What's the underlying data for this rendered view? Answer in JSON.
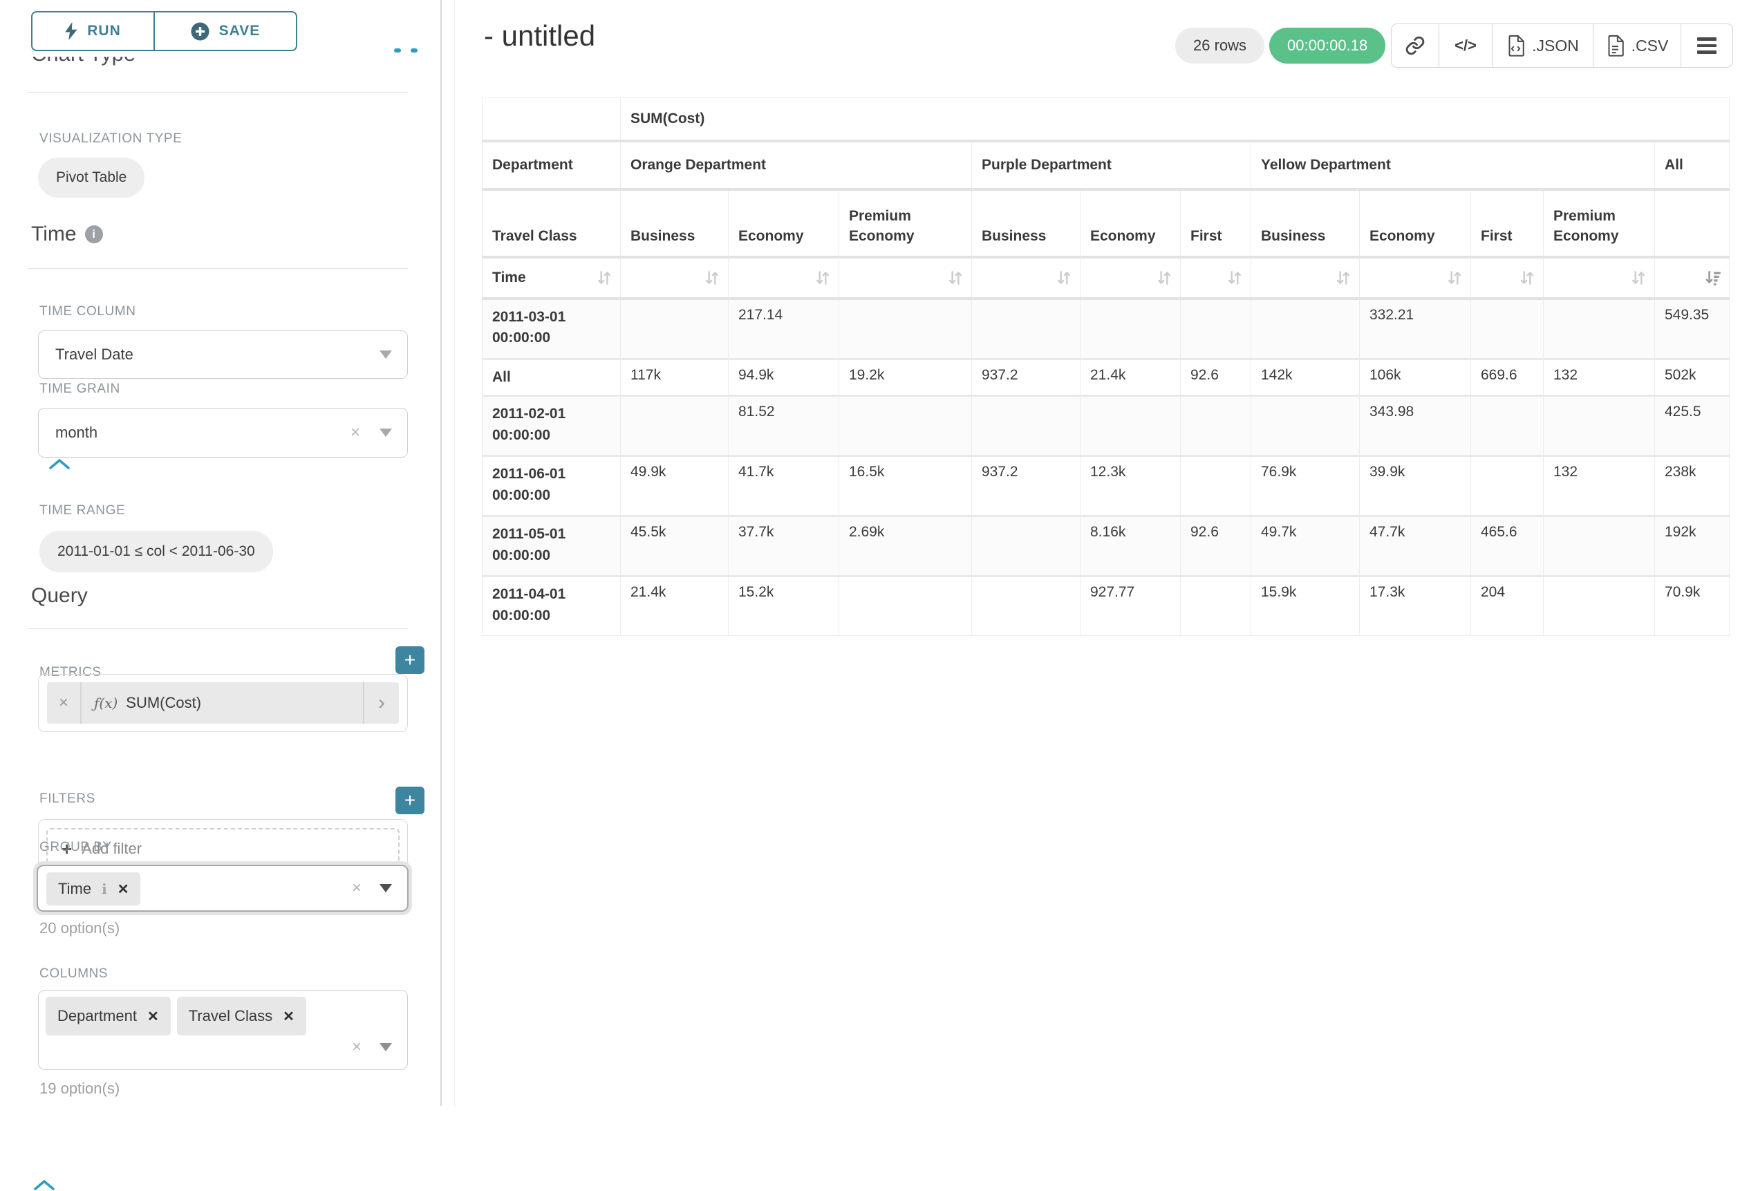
{
  "sidebar": {
    "run_label": "RUN",
    "save_label": "SAVE",
    "chart_type_section": {
      "title": "Chart Type",
      "viz_label": "VISUALIZATION TYPE",
      "viz_value": "Pivot Table"
    },
    "time_section": {
      "title": "Time",
      "time_column_label": "TIME COLUMN",
      "time_column_value": "Travel Date",
      "time_grain_label": "TIME GRAIN",
      "time_grain_value": "month",
      "time_range_label": "TIME RANGE",
      "time_range_value": "2011-01-01 ≤ col < 2011-06-30"
    },
    "query_section": {
      "title": "Query",
      "metrics_label": "METRICS",
      "metric_fx": "ƒ(x)",
      "metric_value": "SUM(Cost)",
      "filters_label": "FILTERS",
      "add_filter_label": "Add filter",
      "group_by_label": "GROUP BY",
      "group_by_tags": [
        "Time"
      ],
      "group_by_options": "20 option(s)",
      "columns_label": "COLUMNS",
      "columns_tags": [
        "Department",
        "Travel Class"
      ],
      "columns_options": "19 option(s)"
    },
    "icons": {
      "close": "×",
      "tag_close": "✕",
      "info": "i",
      "plus": "+",
      "arrow_right": "›"
    }
  },
  "header": {
    "title": "- untitled",
    "rows_badge": "26 rows",
    "timer": "00:00:00.18",
    "code_icon_text": "</>",
    "json_label": ".JSON",
    "csv_label": ".CSV"
  },
  "pivot": {
    "metric_header": "SUM(Cost)",
    "dept_label": "Department",
    "class_label": "Travel Class",
    "time_label": "Time",
    "groups": [
      {
        "label": "Orange Department",
        "classes": [
          "Business",
          "Economy",
          "Premium Economy"
        ]
      },
      {
        "label": "Purple Department",
        "classes": [
          "Business",
          "Economy",
          "First"
        ]
      },
      {
        "label": "Yellow Department",
        "classes": [
          "Business",
          "Economy",
          "First",
          "Premium Economy"
        ]
      },
      {
        "label": "All",
        "classes": [
          ""
        ]
      }
    ],
    "rows": [
      {
        "time": "2011-03-01 00:00:00",
        "values": [
          "",
          "217.14",
          "",
          "",
          "",
          "",
          "",
          "332.21",
          "",
          "",
          "549.35"
        ]
      },
      {
        "time": "All",
        "values": [
          "117k",
          "94.9k",
          "19.2k",
          "937.2",
          "21.4k",
          "92.6",
          "142k",
          "106k",
          "669.6",
          "132",
          "502k"
        ]
      },
      {
        "time": "2011-02-01 00:00:00",
        "values": [
          "",
          "81.52",
          "",
          "",
          "",
          "",
          "",
          "343.98",
          "",
          "",
          "425.5"
        ]
      },
      {
        "time": "2011-06-01 00:00:00",
        "values": [
          "49.9k",
          "41.7k",
          "16.5k",
          "937.2",
          "12.3k",
          "",
          "76.9k",
          "39.9k",
          "",
          "132",
          "238k"
        ]
      },
      {
        "time": "2011-05-01 00:00:00",
        "values": [
          "45.5k",
          "37.7k",
          "2.69k",
          "",
          "8.16k",
          "92.6",
          "49.7k",
          "47.7k",
          "465.6",
          "",
          "192k"
        ]
      },
      {
        "time": "2011-04-01 00:00:00",
        "values": [
          "21.4k",
          "15.2k",
          "",
          "",
          "927.77",
          "",
          "15.9k",
          "17.3k",
          "204",
          "",
          "70.9k"
        ]
      }
    ]
  }
}
